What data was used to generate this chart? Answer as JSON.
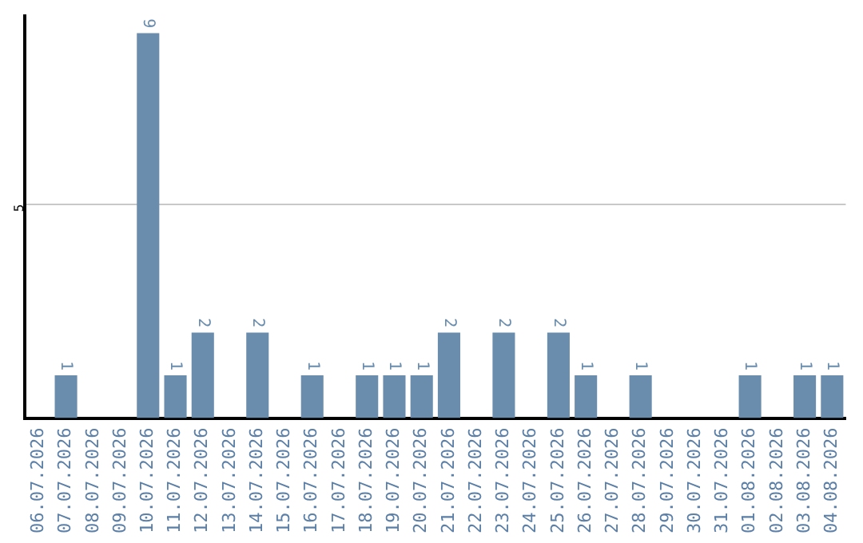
{
  "chart_data": {
    "type": "bar",
    "categories": [
      "06.07.2026",
      "07.07.2026",
      "08.07.2026",
      "09.07.2026",
      "10.07.2026",
      "11.07.2026",
      "12.07.2026",
      "13.07.2026",
      "14.07.2026",
      "15.07.2026",
      "16.07.2026",
      "17.07.2026",
      "18.07.2026",
      "19.07.2026",
      "20.07.2026",
      "21.07.2026",
      "22.07.2026",
      "23.07.2026",
      "24.07.2026",
      "25.07.2026",
      "26.07.2026",
      "27.07.2026",
      "28.07.2026",
      "29.07.2026",
      "30.07.2026",
      "31.07.2026",
      "01.08.2026",
      "02.08.2026",
      "03.08.2026",
      "04.08.2026"
    ],
    "values": [
      0,
      1,
      0,
      0,
      9,
      1,
      2,
      0,
      2,
      0,
      1,
      0,
      1,
      1,
      1,
      2,
      0,
      2,
      0,
      2,
      1,
      0,
      1,
      0,
      0,
      0,
      1,
      0,
      1,
      1
    ],
    "value_labels": [
      null,
      "1",
      null,
      null,
      "9",
      "1",
      "2",
      null,
      "2",
      null,
      "1",
      null,
      "1",
      "1",
      "1",
      "2",
      null,
      "2",
      null,
      "2",
      "1",
      null,
      "1",
      null,
      null,
      null,
      "1",
      null,
      "1",
      "1"
    ],
    "color": "#6a8cad",
    "ylim": [
      0,
      9.4
    ],
    "yticks": [
      5
    ],
    "grid": "y",
    "legend": false
  }
}
